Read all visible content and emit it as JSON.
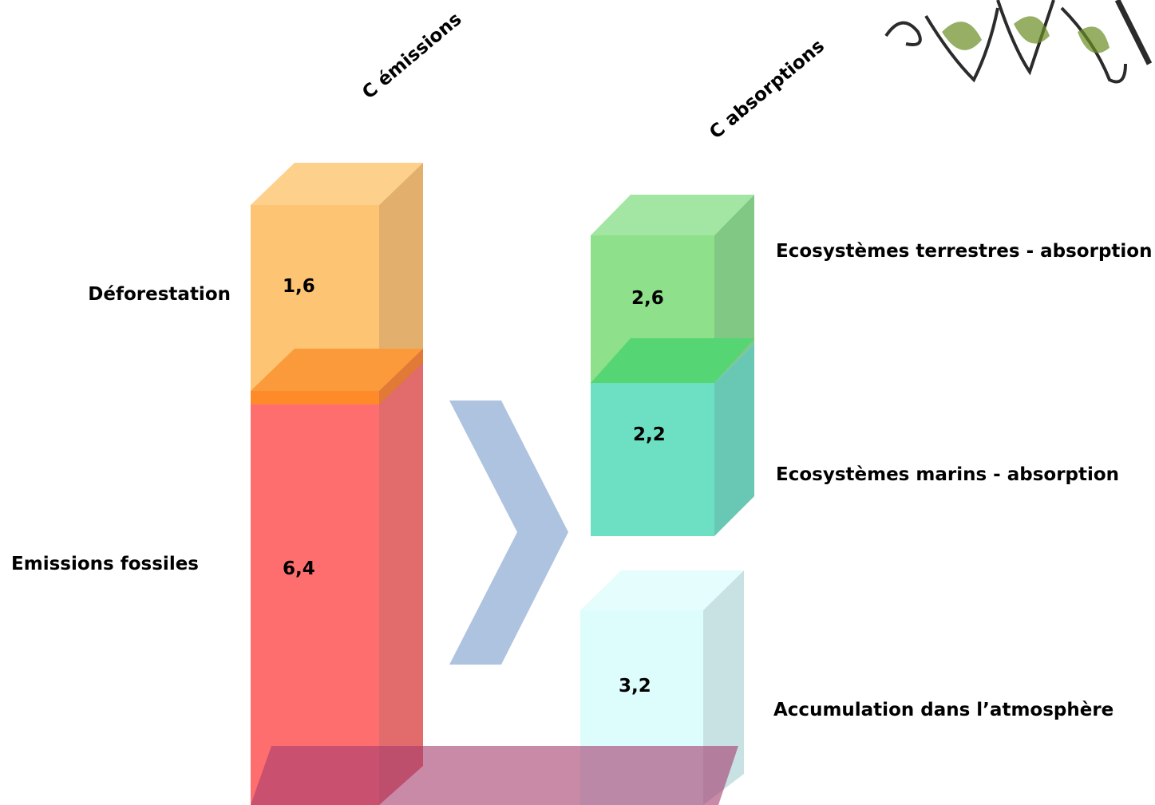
{
  "header": {
    "emissions": "C émissions",
    "absorptions": "C absorptions"
  },
  "emissions": [
    {
      "label": "Déforestation",
      "value": "1,6"
    },
    {
      "label": "Emissions fossiles",
      "value": "6,4"
    }
  ],
  "absorptions": [
    {
      "label": "Ecosystèmes terrestres - absorption",
      "value": "2,6"
    },
    {
      "label": "Ecosystèmes marins - absorption",
      "value": "2,2"
    },
    {
      "label": "Accumulation dans l’atmosphère",
      "value": "3,2"
    }
  ]
}
